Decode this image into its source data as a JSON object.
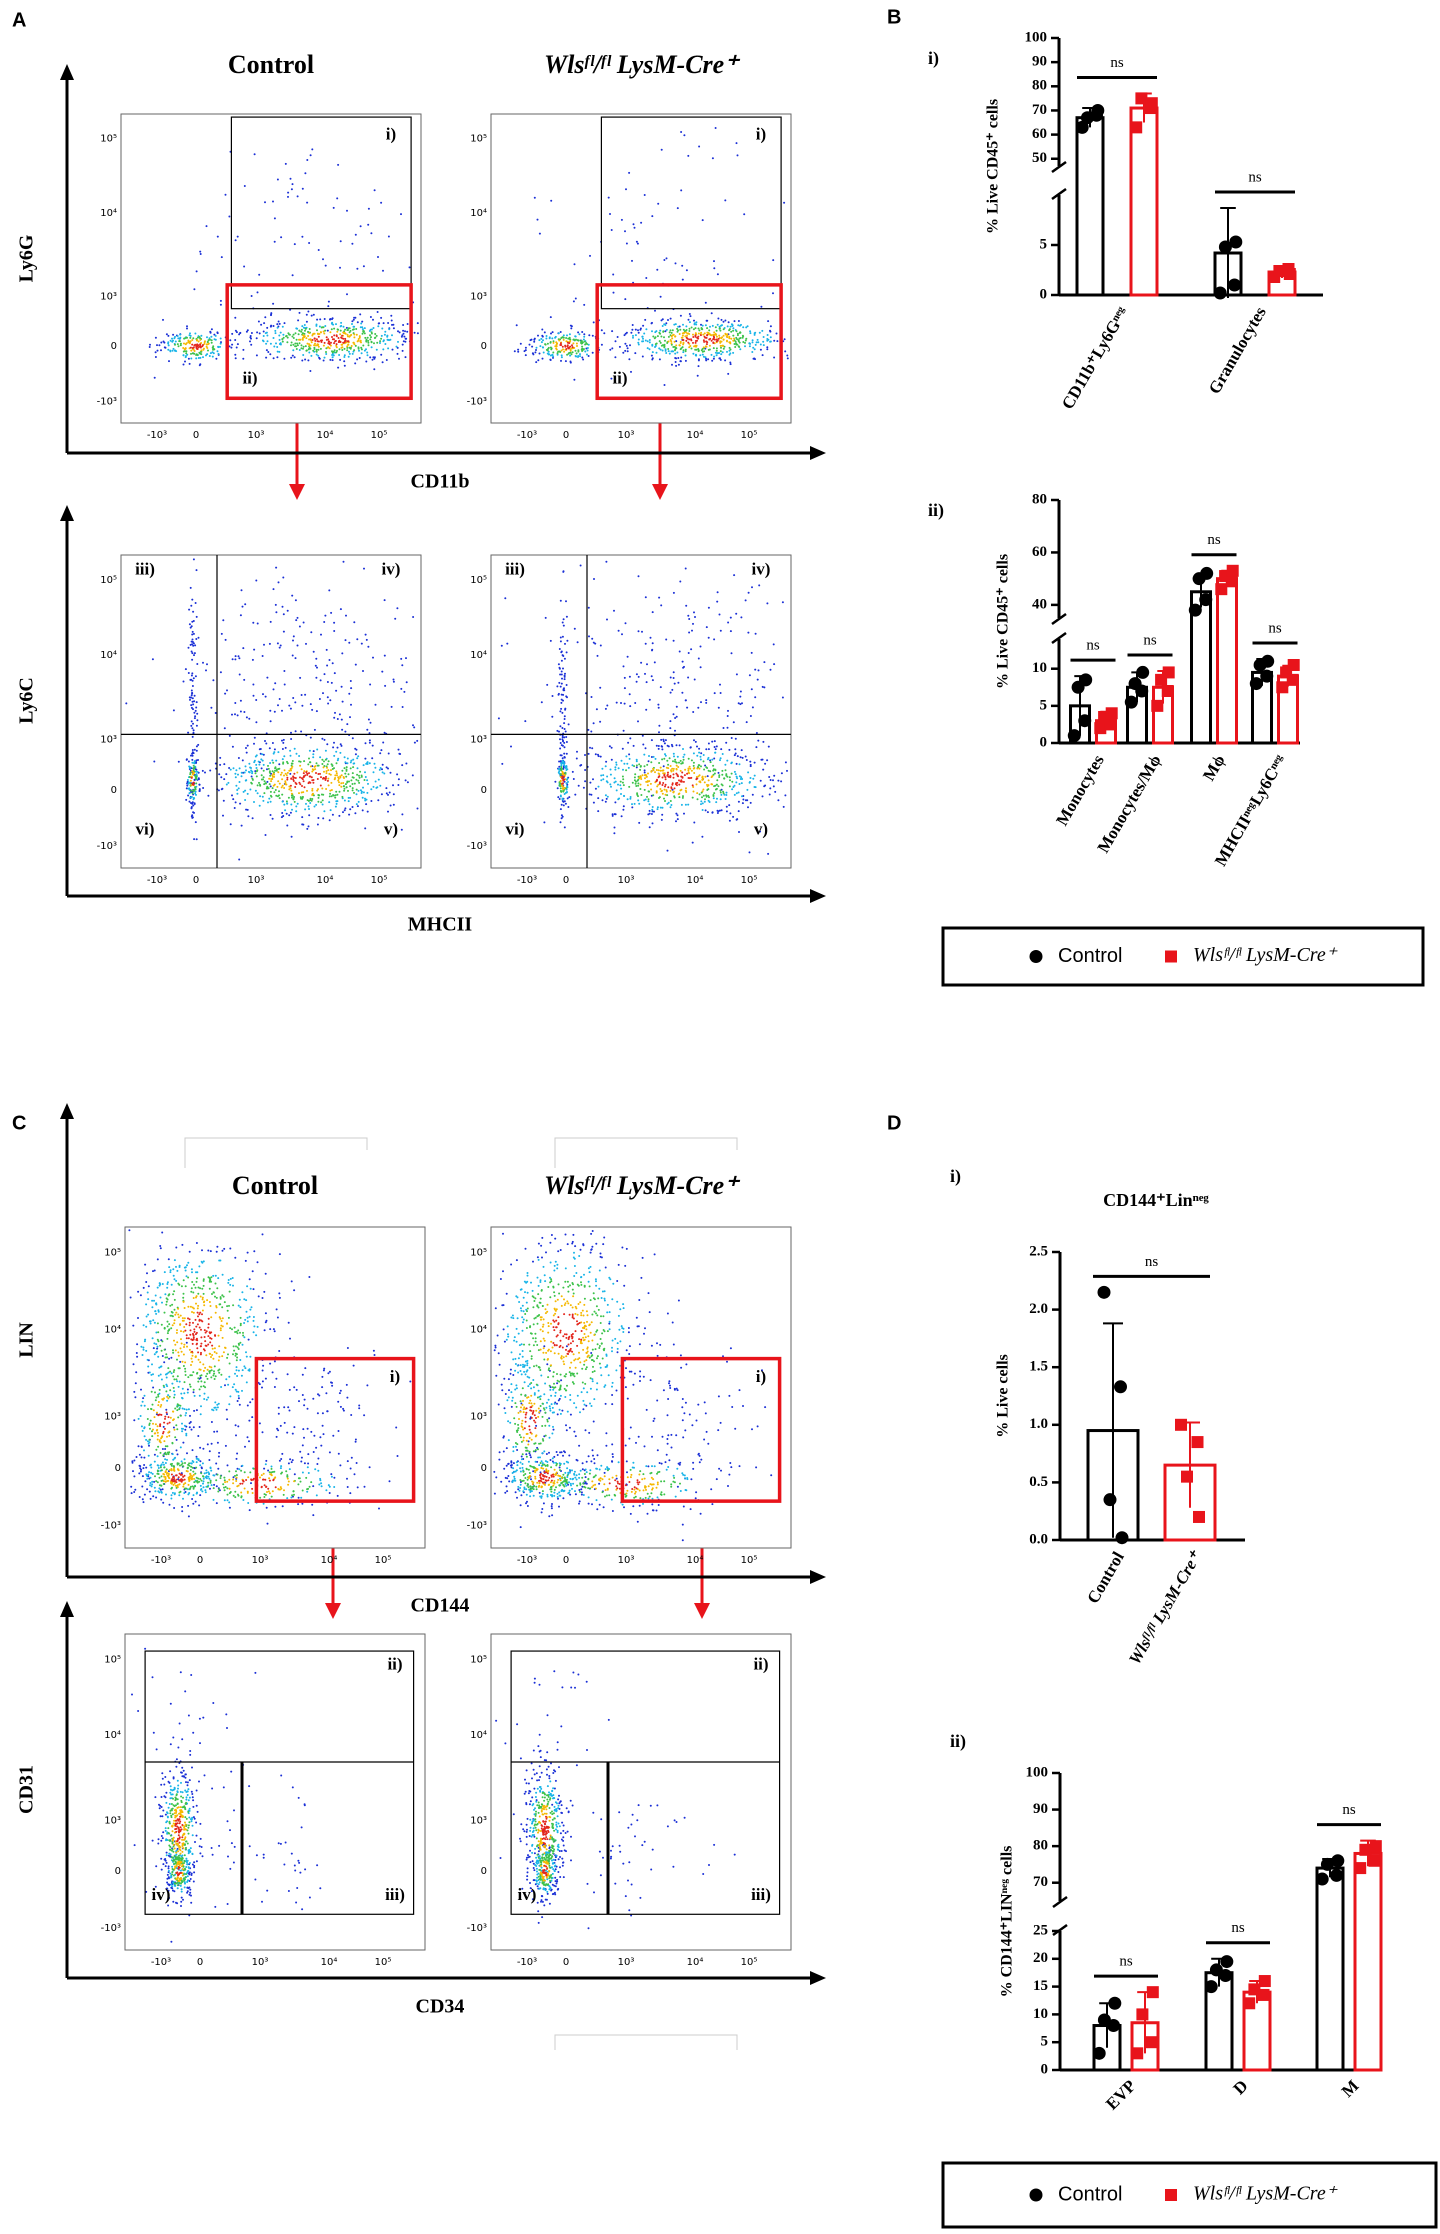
{
  "panel_labels": {
    "A": "A",
    "B": "B",
    "C": "C",
    "D": "D"
  },
  "sub_labels": {
    "B_i": "i)",
    "B_ii": "ii)",
    "D_i": "i)",
    "D_ii": "ii)"
  },
  "flow": {
    "tick_labels": [
      "10⁵",
      "10⁴",
      "10³",
      "0",
      "-10³"
    ],
    "A": {
      "columns": [
        "Control",
        "Wlsᶠˡ/ᶠˡ LysM-Cre⁺"
      ],
      "top": {
        "y_label": "Ly6G",
        "x_label": "CD11b",
        "gates": [
          "i)",
          "ii)"
        ]
      },
      "bottom": {
        "y_label": "Ly6C",
        "x_label": "MHCII",
        "gates": [
          "iii)",
          "iv)",
          "v)",
          "vi)"
        ]
      }
    },
    "C": {
      "columns": [
        "Control",
        "Wlsᶠˡ/ᶠˡ LysM-Cre⁺"
      ],
      "top": {
        "y_label": "LIN",
        "x_label": "CD144",
        "gates": [
          "i)"
        ]
      },
      "bottom": {
        "y_label": "CD31",
        "x_label": "CD34",
        "gates": [
          "ii)",
          "iii)",
          "iv)"
        ]
      }
    }
  },
  "chart_data": [
    {
      "type": "bar",
      "ylabel": "% Live CD45⁺ cells",
      "categories": [
        "CD11b⁺Ly6Gⁿᵉᵍ",
        "Granulocytes"
      ],
      "series": [
        {
          "name": "Control",
          "color": "#000000",
          "marker": "circle",
          "values": [
            67,
            4.2
          ],
          "errors": [
            4,
            4.5
          ],
          "points": [
            [
              63,
              68,
              67,
              70
            ],
            [
              0.2,
              1,
              4.8,
              5.3
            ]
          ]
        },
        {
          "name": "Wlsᶠˡ/ᶠˡ LysM-Cre⁺",
          "color": "#e8141b",
          "marker": "square",
          "values": [
            71,
            2.3
          ],
          "errors": [
            6,
            0.6
          ],
          "points": [
            [
              63,
              71,
              75,
              73
            ],
            [
              1.8,
              2.6,
              2.4,
              2.1
            ]
          ]
        }
      ],
      "annotations": [
        "ns",
        "ns"
      ],
      "ylim": [
        0,
        100
      ],
      "axis_break": [
        10,
        47
      ],
      "yticks": [
        0,
        5,
        50,
        60,
        70,
        80,
        90,
        100
      ]
    },
    {
      "type": "bar",
      "ylabel": "% Live CD45⁺ cells",
      "categories": [
        "Monocytes",
        "Monocytes/Mϕ",
        "Mϕ",
        "MHCIIⁿᵉᵍLy6Cⁿᵉᵍ"
      ],
      "series": [
        {
          "name": "Control",
          "color": "#000000",
          "marker": "circle",
          "values": [
            5,
            7.5,
            45,
            9.5
          ],
          "errors": [
            4,
            2,
            6,
            1.8
          ],
          "points": [
            [
              1,
              3,
              7.5,
              8.5
            ],
            [
              5.5,
              7,
              8,
              9.5
            ],
            [
              38,
              42,
              50,
              52
            ],
            [
              8,
              9,
              10.5,
              11
            ]
          ]
        },
        {
          "name": "Wlsᶠˡ/ᶠˡ LysM-Cre⁺",
          "color": "#e8141b",
          "marker": "square",
          "values": [
            3,
            7.5,
            50,
            9
          ],
          "errors": [
            1.2,
            2.2,
            3,
            1.4
          ],
          "points": [
            [
              2,
              2.5,
              3.5,
              4
            ],
            [
              5,
              7,
              8.5,
              9.5
            ],
            [
              46,
              49,
              51,
              53
            ],
            [
              7.5,
              8.5,
              9.5,
              10.5
            ]
          ]
        }
      ],
      "annotations": [
        "ns",
        "ns",
        "ns",
        "ns"
      ],
      "ylim": [
        0,
        80
      ],
      "axis_break": [
        14,
        35
      ],
      "yticks": [
        0,
        5,
        10,
        40,
        60,
        80
      ],
      "legend": "below"
    },
    {
      "type": "bar",
      "title": "CD144⁺Linⁿᵉᵍ",
      "ylabel": "% Live cells",
      "categories": [
        "Control",
        "Wlsᶠˡ/ᶠˡ LysM-Cre⁺"
      ],
      "values": [
        0.95,
        0.65
      ],
      "errors": [
        0.93,
        0.37
      ],
      "points": [
        [
          2.15,
          1.33,
          0.35,
          0.02
        ],
        [
          1.0,
          0.85,
          0.55,
          0.2
        ]
      ],
      "colors": [
        "#000000",
        "#e8141b"
      ],
      "markers": [
        "circle",
        "square"
      ],
      "annotations": [
        "ns"
      ],
      "ylim": [
        0,
        2.5
      ],
      "yticks": [
        {
          "value": 0,
          "label": "0.0"
        },
        0.5,
        {
          "value": 1,
          "label": "1.0"
        },
        1.5,
        {
          "value": 2,
          "label": "2.0"
        },
        2.5
      ]
    },
    {
      "type": "bar",
      "ylabel": "% CD144⁺LINⁿᵉᵍ cells",
      "categories": [
        "EVP",
        "D",
        "M"
      ],
      "series": [
        {
          "name": "Control",
          "color": "#000000",
          "marker": "circle",
          "values": [
            8,
            17.5,
            74
          ],
          "errors": [
            4,
            2.5,
            2.5
          ],
          "points": [
            [
              3,
              8,
              9,
              12
            ],
            [
              15,
              17,
              18,
              19.5
            ],
            [
              71,
              72,
              75,
              76
            ]
          ]
        },
        {
          "name": "Wlsᶠˡ/ᶠˡ LysM-Cre⁺",
          "color": "#e8141b",
          "marker": "square",
          "values": [
            8.5,
            14,
            78
          ],
          "errors": [
            5.5,
            2,
            3.5
          ],
          "points": [
            [
              3,
              5,
              10,
              14
            ],
            [
              12,
              13.5,
              14.5,
              16
            ],
            [
              74,
              76,
              79,
              80
            ]
          ]
        }
      ],
      "annotations": [
        "ns",
        "ns",
        "ns"
      ],
      "ylim": [
        0,
        100
      ],
      "axis_break": [
        25,
        65
      ],
      "yticks": [
        0,
        5,
        10,
        15,
        20,
        25,
        70,
        80,
        90,
        100
      ],
      "legend": "below"
    }
  ]
}
